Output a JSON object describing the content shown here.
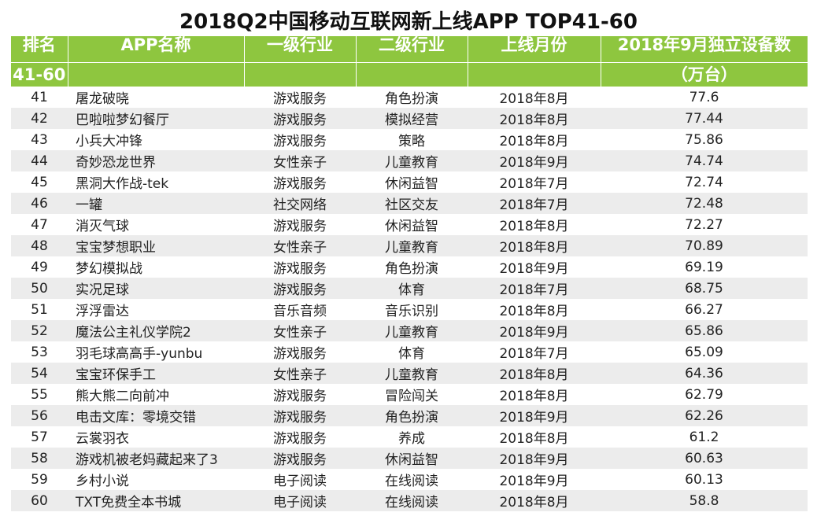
{
  "title": "2018Q2中国移动互联网新上线APP TOP41-60",
  "headers": {
    "rank": "排名",
    "rank_range": "41-60",
    "app_name": "APP名称",
    "industry1": "一级行业",
    "industry2": "二级行业",
    "launch_month": "上线月份",
    "devices": "2018年9月独立设备数",
    "devices_unit": "（万台）"
  },
  "rows": [
    {
      "rank": "41",
      "name": "屠龙破晓",
      "industry1": "游戏服务",
      "industry2": "角色扮演",
      "month": "2018年8月",
      "devices": "77.6"
    },
    {
      "rank": "42",
      "name": "巴啦啦梦幻餐厅",
      "industry1": "游戏服务",
      "industry2": "模拟经营",
      "month": "2018年8月",
      "devices": "77.44"
    },
    {
      "rank": "43",
      "name": "小兵大冲锋",
      "industry1": "游戏服务",
      "industry2": "策略",
      "month": "2018年8月",
      "devices": "75.86"
    },
    {
      "rank": "44",
      "name": "奇妙恐龙世界",
      "industry1": "女性亲子",
      "industry2": "儿童教育",
      "month": "2018年9月",
      "devices": "74.74"
    },
    {
      "rank": "45",
      "name": "黑洞大作战-tek",
      "industry1": "游戏服务",
      "industry2": "休闲益智",
      "month": "2018年7月",
      "devices": "72.74"
    },
    {
      "rank": "46",
      "name": "一罐",
      "industry1": "社交网络",
      "industry2": "社区交友",
      "month": "2018年7月",
      "devices": "72.48"
    },
    {
      "rank": "47",
      "name": "消灭气球",
      "industry1": "游戏服务",
      "industry2": "休闲益智",
      "month": "2018年8月",
      "devices": "72.27"
    },
    {
      "rank": "48",
      "name": "宝宝梦想职业",
      "industry1": "女性亲子",
      "industry2": "儿童教育",
      "month": "2018年8月",
      "devices": "70.89"
    },
    {
      "rank": "49",
      "name": "梦幻模拟战",
      "industry1": "游戏服务",
      "industry2": "角色扮演",
      "month": "2018年9月",
      "devices": "69.19"
    },
    {
      "rank": "50",
      "name": "实况足球",
      "industry1": "游戏服务",
      "industry2": "体育",
      "month": "2018年7月",
      "devices": "68.75"
    },
    {
      "rank": "51",
      "name": "浮浮雷达",
      "industry1": "音乐音频",
      "industry2": "音乐识别",
      "month": "2018年8月",
      "devices": "66.27"
    },
    {
      "rank": "52",
      "name": "魔法公主礼仪学院2",
      "industry1": "女性亲子",
      "industry2": "儿童教育",
      "month": "2018年9月",
      "devices": "65.86"
    },
    {
      "rank": "53",
      "name": "羽毛球高高手-yunbu",
      "industry1": "游戏服务",
      "industry2": "体育",
      "month": "2018年7月",
      "devices": "65.09"
    },
    {
      "rank": "54",
      "name": "宝宝环保手工",
      "industry1": "女性亲子",
      "industry2": "儿童教育",
      "month": "2018年8月",
      "devices": "64.36"
    },
    {
      "rank": "55",
      "name": "熊大熊二向前冲",
      "industry1": "游戏服务",
      "industry2": "冒险闯关",
      "month": "2018年8月",
      "devices": "62.79"
    },
    {
      "rank": "56",
      "name": "电击文库：零境交错",
      "industry1": "游戏服务",
      "industry2": "角色扮演",
      "month": "2018年9月",
      "devices": "62.26"
    },
    {
      "rank": "57",
      "name": "云裳羽衣",
      "industry1": "游戏服务",
      "industry2": "养成",
      "month": "2018年8月",
      "devices": "61.2"
    },
    {
      "rank": "58",
      "name": "游戏机被老妈藏起来了3",
      "industry1": "游戏服务",
      "industry2": "休闲益智",
      "month": "2018年9月",
      "devices": "60.63"
    },
    {
      "rank": "59",
      "name": "乡村小说",
      "industry1": "电子阅读",
      "industry2": "在线阅读",
      "month": "2018年9月",
      "devices": "60.13"
    },
    {
      "rank": "60",
      "name": "TXT免费全本书城",
      "industry1": "电子阅读",
      "industry2": "在线阅读",
      "month": "2018年8月",
      "devices": "58.8"
    }
  ],
  "colors": {
    "header_bg": "#8ec63f",
    "header_text": "#ffffff",
    "stripe": "#ececec"
  }
}
